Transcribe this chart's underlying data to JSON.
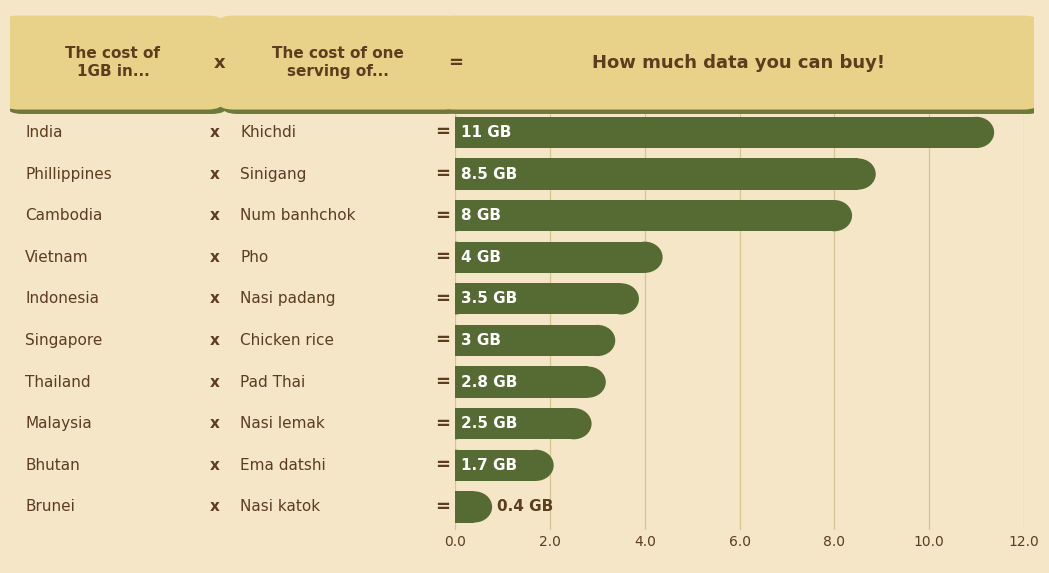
{
  "countries": [
    "India",
    "Phillippines",
    "Cambodia",
    "Vietnam",
    "Indonesia",
    "Singapore",
    "Thailand",
    "Malaysia",
    "Bhutan",
    "Brunei"
  ],
  "foods": [
    "Khichdi",
    "Sinigang",
    "Num banhchok",
    "Pho",
    "Nasi padang",
    "Chicken rice",
    "Pad Thai",
    "Nasi lemak",
    "Ema datshi",
    "Nasi katok"
  ],
  "values": [
    11,
    8.5,
    8,
    4,
    3.5,
    3,
    2.8,
    2.5,
    1.7,
    0.4
  ],
  "labels": [
    "11 GB",
    "8.5 GB",
    "8 GB",
    "4 GB",
    "3.5 GB",
    "3 GB",
    "2.8 GB",
    "2.5 GB",
    "1.7 GB",
    "0.4 GB"
  ],
  "bar_color": "#566b33",
  "background_color": "#f5e6c8",
  "header_box_color": "#e8d28a",
  "header_box_border": "#6b7a3a",
  "text_color": "#5c3d1e",
  "bar_text_color": "#ffffff",
  "outside_text_color": "#5c3d1e",
  "xlim": [
    0,
    12
  ],
  "xticks": [
    0.0,
    2.0,
    4.0,
    6.0,
    8.0,
    10.0,
    12.0
  ],
  "grid_color": "#d4c490",
  "fig_width": 10.24,
  "fig_height": 5.53
}
